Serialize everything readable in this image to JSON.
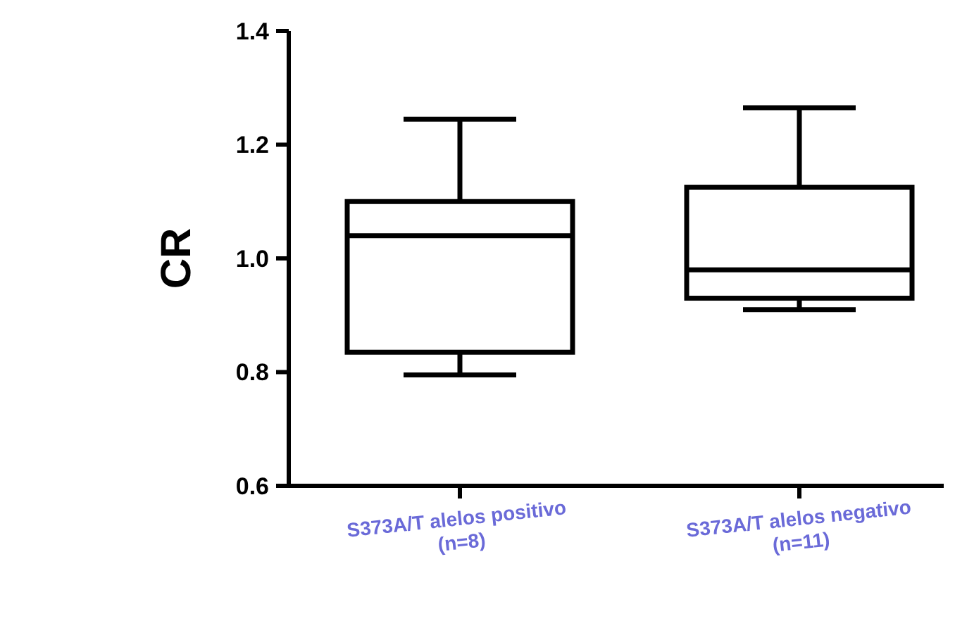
{
  "chart_data": {
    "type": "box",
    "ylabel": "CR",
    "categories": [
      "S373A/T alelos positivo  (n=8)",
      "S373A/T alelos negativo (n=11)"
    ],
    "series": [
      {
        "color": "#ffffff",
        "boxes": [
          {
            "low": 0.795,
            "q1": 0.835,
            "median": 1.04,
            "q3": 1.1,
            "high": 1.245
          },
          {
            "low": 0.91,
            "q1": 0.93,
            "median": 0.98,
            "q3": 1.125,
            "high": 1.265
          }
        ]
      }
    ],
    "ylim": [
      0.6,
      1.4
    ],
    "yticks": [
      0.6,
      0.8,
      {
        "value": 1,
        "label": "1.0"
      },
      1.2,
      1.4
    ],
    "grid": false
  }
}
